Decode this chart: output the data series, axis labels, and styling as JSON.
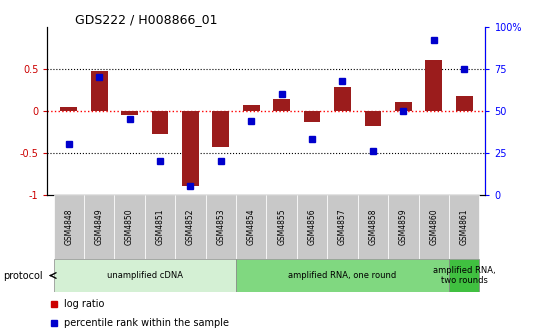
{
  "title": "GDS222 / H008866_01",
  "samples": [
    "GSM4848",
    "GSM4849",
    "GSM4850",
    "GSM4851",
    "GSM4852",
    "GSM4853",
    "GSM4854",
    "GSM4855",
    "GSM4856",
    "GSM4857",
    "GSM4858",
    "GSM4859",
    "GSM4860",
    "GSM4861"
  ],
  "log_ratio": [
    0.05,
    0.47,
    -0.05,
    -0.27,
    -0.9,
    -0.43,
    0.07,
    0.14,
    -0.13,
    0.28,
    -0.18,
    0.1,
    0.6,
    0.18
  ],
  "percentile": [
    30,
    70,
    45,
    20,
    5,
    20,
    44,
    60,
    33,
    68,
    26,
    50,
    92,
    75
  ],
  "bar_color": "#9b1c1c",
  "dot_color": "#0000cc",
  "protocols": [
    {
      "label": "unamplified cDNA",
      "start": 0,
      "end": 6,
      "color": "#d4f0d4"
    },
    {
      "label": "amplified RNA, one round",
      "start": 6,
      "end": 13,
      "color": "#80d880"
    },
    {
      "label": "amplified RNA,\ntwo rounds",
      "start": 13,
      "end": 14,
      "color": "#40c040"
    }
  ],
  "ylim_left": [
    -1,
    1
  ],
  "ylim_right": [
    0,
    100
  ],
  "yticks_left": [
    -1,
    -0.5,
    0,
    0.5
  ],
  "ytick_labels_left": [
    "-1",
    "-0.5",
    "0",
    "0.5"
  ],
  "yticks_right": [
    0,
    25,
    50,
    75,
    100
  ],
  "ytick_labels_right": [
    "0",
    "25",
    "50",
    "75",
    "100%"
  ],
  "legend_items": [
    {
      "label": "log ratio",
      "color": "#cc0000"
    },
    {
      "label": "percentile rank within the sample",
      "color": "#0000cc"
    }
  ],
  "background_color": "#ffffff",
  "protocol_label": "protocol",
  "sample_box_color": "#c8c8c8"
}
